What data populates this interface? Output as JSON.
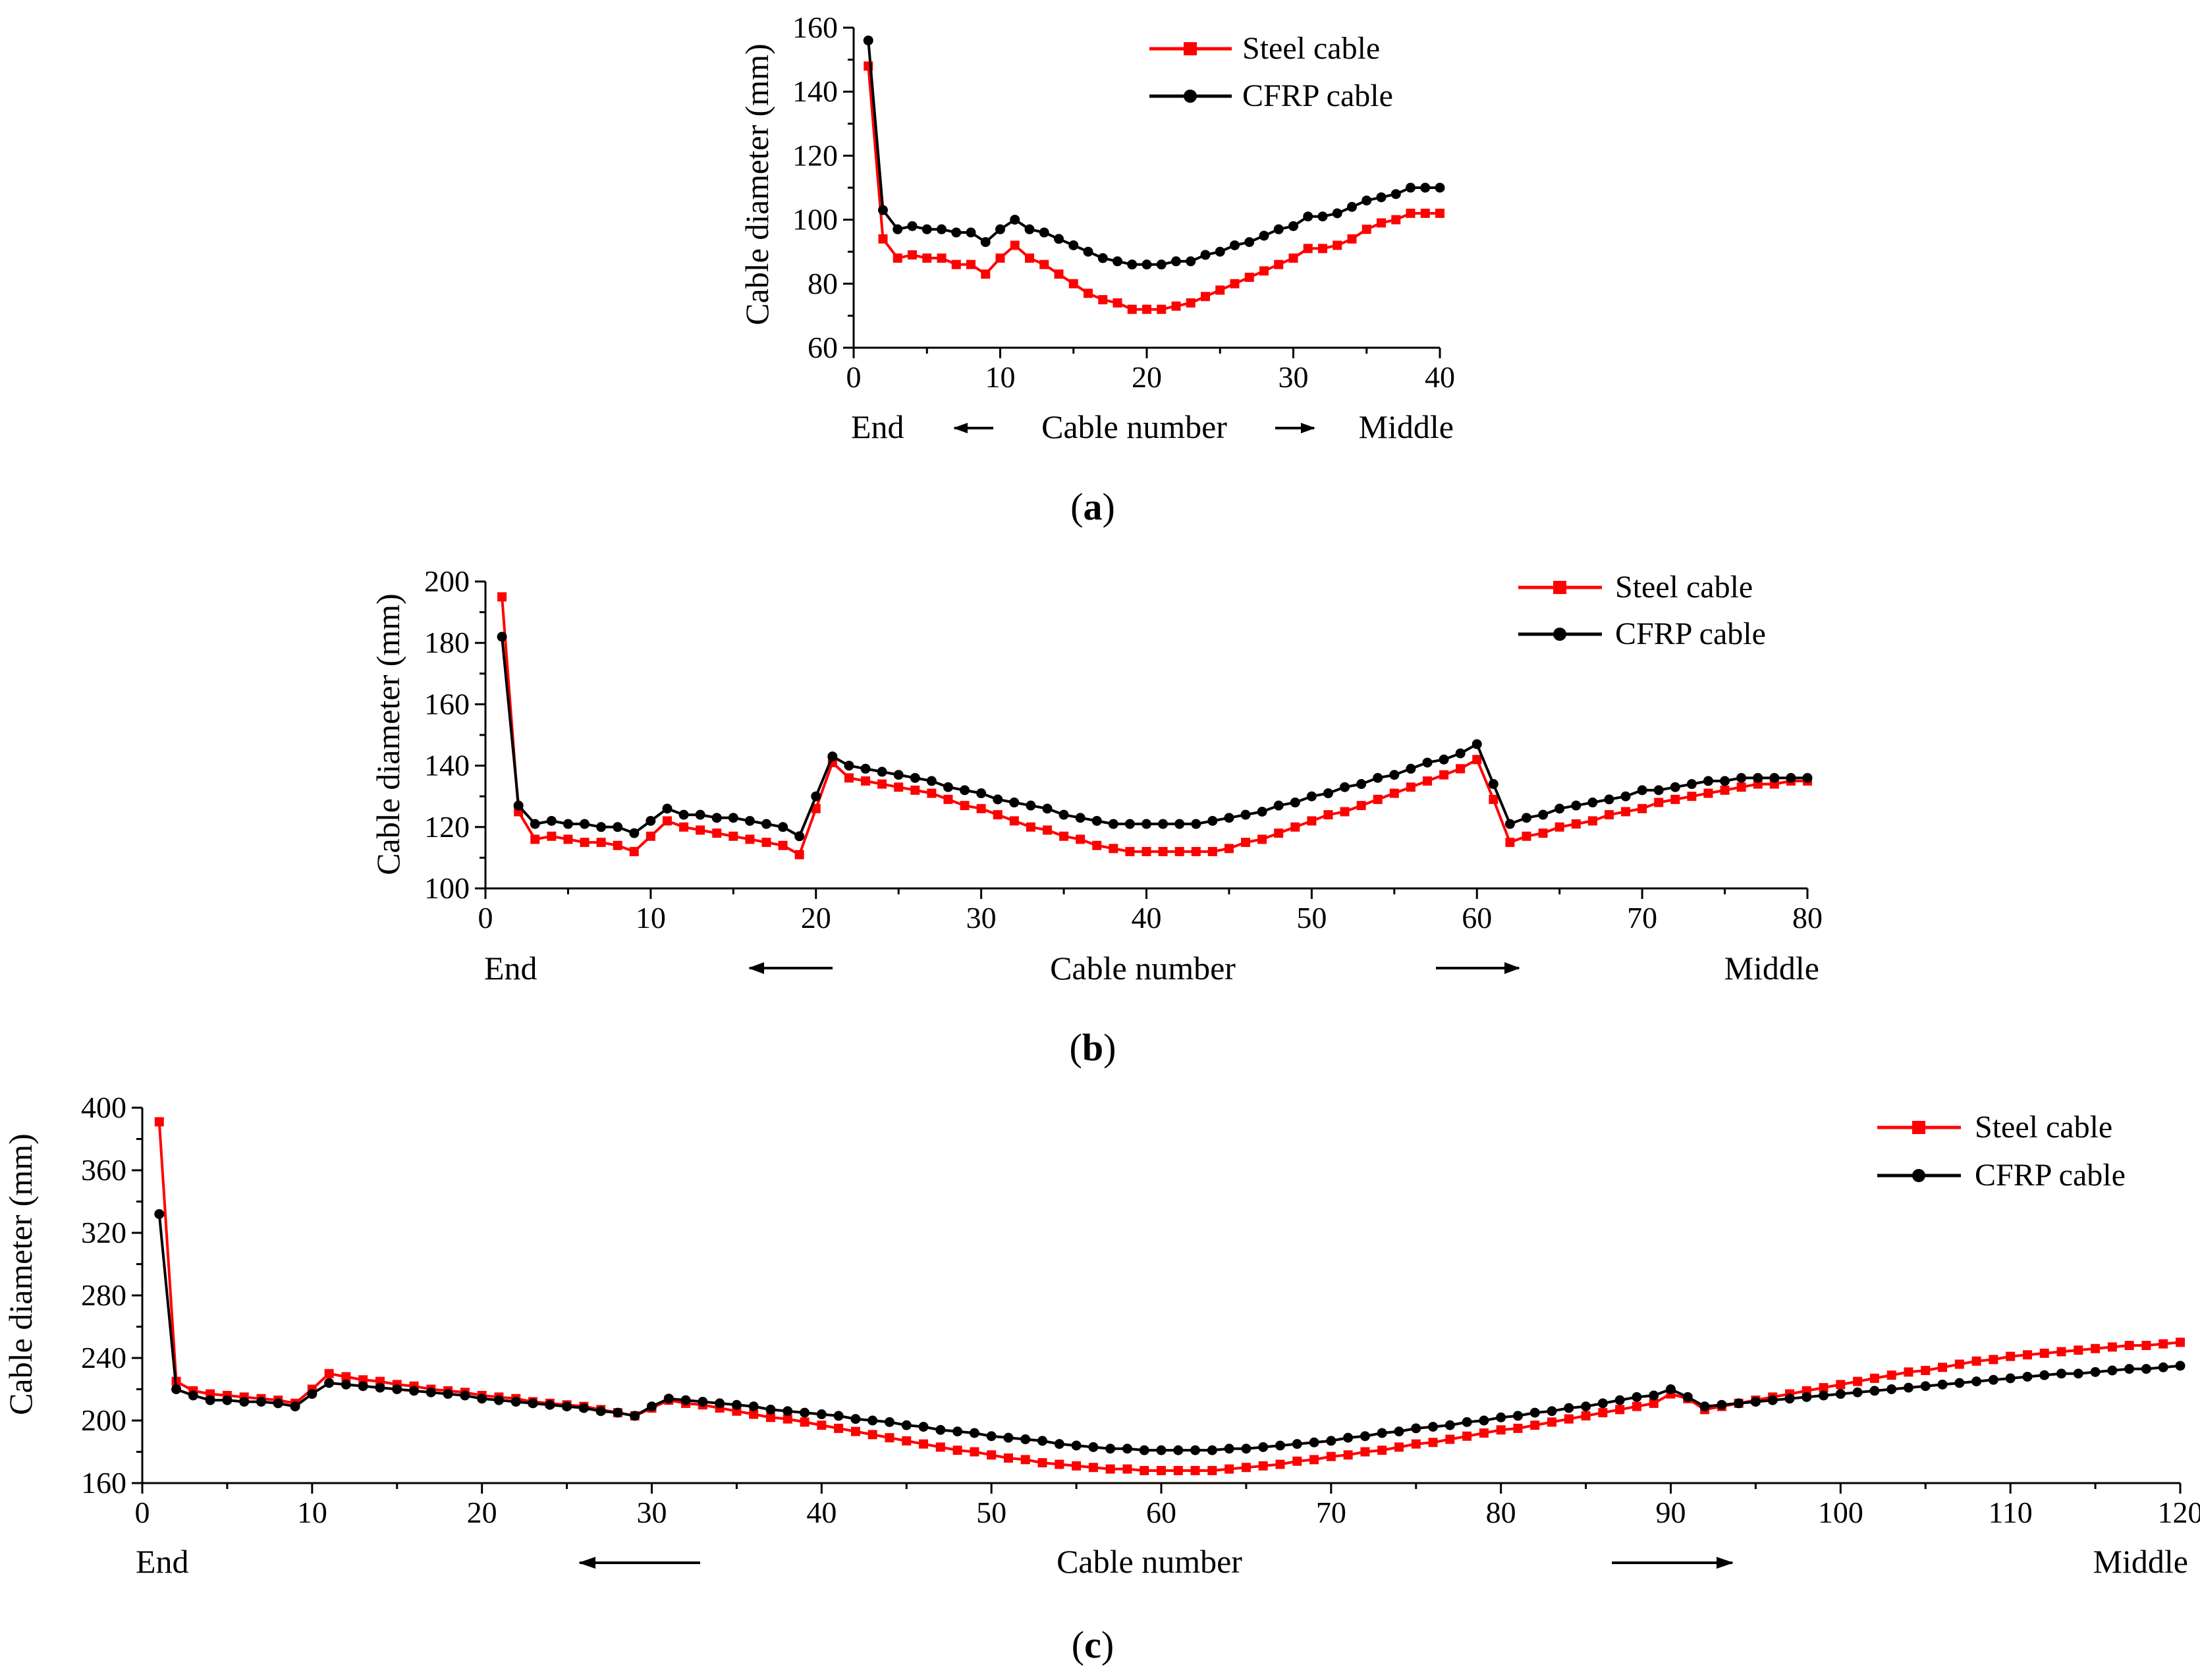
{
  "chart_data": [
    {
      "panel": "a",
      "type": "line",
      "caption": {
        "open": "(",
        "letter": "a",
        "close": ")"
      },
      "xlabel": "Cable number",
      "ylabel": "Cable diameter (mm)",
      "x_left_label": "End",
      "x_right_label": "Middle",
      "xlim": [
        0,
        40
      ],
      "ylim": [
        60,
        160
      ],
      "xticks": [
        0,
        10,
        20,
        30,
        40
      ],
      "yticks": [
        60,
        80,
        100,
        120,
        140,
        160
      ],
      "grid": false,
      "legend_position": "top-right",
      "x": [
        1,
        2,
        3,
        4,
        5,
        6,
        7,
        8,
        9,
        10,
        11,
        12,
        13,
        14,
        15,
        16,
        17,
        18,
        19,
        20,
        21,
        22,
        23,
        24,
        25,
        26,
        27,
        28,
        29,
        30,
        31,
        32,
        33,
        34,
        35,
        36,
        37,
        38,
        39,
        40
      ],
      "series": [
        {
          "name": "Steel cable",
          "color": "#ff0000",
          "marker": "square",
          "values": [
            148,
            94,
            88,
            89,
            88,
            88,
            86,
            86,
            83,
            88,
            92,
            88,
            86,
            83,
            80,
            77,
            75,
            74,
            72,
            72,
            72,
            73,
            74,
            76,
            78,
            80,
            82,
            84,
            86,
            88,
            91,
            91,
            92,
            94,
            97,
            99,
            100,
            102,
            102,
            102
          ]
        },
        {
          "name": "CFRP cable",
          "color": "#000000",
          "marker": "circle",
          "values": [
            156,
            103,
            97,
            98,
            97,
            97,
            96,
            96,
            93,
            97,
            100,
            97,
            96,
            94,
            92,
            90,
            88,
            87,
            86,
            86,
            86,
            87,
            87,
            89,
            90,
            92,
            93,
            95,
            97,
            98,
            101,
            101,
            102,
            104,
            106,
            107,
            108,
            110,
            110,
            110
          ]
        }
      ]
    },
    {
      "panel": "b",
      "type": "line",
      "caption": {
        "open": "(",
        "letter": "b",
        "close": ")"
      },
      "xlabel": "Cable number",
      "ylabel": "Cable diameter (mm)",
      "x_left_label": "End",
      "x_right_label": "Middle",
      "xlim": [
        0,
        80
      ],
      "ylim": [
        100,
        200
      ],
      "xticks": [
        0,
        10,
        20,
        30,
        40,
        50,
        60,
        70,
        80
      ],
      "yticks": [
        100,
        120,
        140,
        160,
        180,
        200
      ],
      "grid": false,
      "legend_position": "top-right",
      "x": [
        1,
        2,
        3,
        4,
        5,
        6,
        7,
        8,
        9,
        10,
        11,
        12,
        13,
        14,
        15,
        16,
        17,
        18,
        19,
        20,
        21,
        22,
        23,
        24,
        25,
        26,
        27,
        28,
        29,
        30,
        31,
        32,
        33,
        34,
        35,
        36,
        37,
        38,
        39,
        40,
        41,
        42,
        43,
        44,
        45,
        46,
        47,
        48,
        49,
        50,
        51,
        52,
        53,
        54,
        55,
        56,
        57,
        58,
        59,
        60,
        61,
        62,
        63,
        64,
        65,
        66,
        67,
        68,
        69,
        70,
        71,
        72,
        73,
        74,
        75,
        76,
        77,
        78,
        79,
        80
      ],
      "series": [
        {
          "name": "Steel cable",
          "color": "#ff0000",
          "marker": "square",
          "values": [
            195,
            125,
            116,
            117,
            116,
            115,
            115,
            114,
            112,
            117,
            122,
            120,
            119,
            118,
            117,
            116,
            115,
            114,
            111,
            126,
            141,
            136,
            135,
            134,
            133,
            132,
            131,
            129,
            127,
            126,
            124,
            122,
            120,
            119,
            117,
            116,
            114,
            113,
            112,
            112,
            112,
            112,
            112,
            112,
            113,
            115,
            116,
            118,
            120,
            122,
            124,
            125,
            127,
            129,
            131,
            133,
            135,
            137,
            139,
            142,
            129,
            115,
            117,
            118,
            120,
            121,
            122,
            124,
            125,
            126,
            128,
            129,
            130,
            131,
            132,
            133,
            134,
            134,
            135,
            135
          ]
        },
        {
          "name": "CFRP cable",
          "color": "#000000",
          "marker": "circle",
          "values": [
            182,
            127,
            121,
            122,
            121,
            121,
            120,
            120,
            118,
            122,
            126,
            124,
            124,
            123,
            123,
            122,
            121,
            120,
            117,
            130,
            143,
            140,
            139,
            138,
            137,
            136,
            135,
            133,
            132,
            131,
            129,
            128,
            127,
            126,
            124,
            123,
            122,
            121,
            121,
            121,
            121,
            121,
            121,
            122,
            123,
            124,
            125,
            127,
            128,
            130,
            131,
            133,
            134,
            136,
            137,
            139,
            141,
            142,
            144,
            147,
            134,
            121,
            123,
            124,
            126,
            127,
            128,
            129,
            130,
            132,
            132,
            133,
            134,
            135,
            135,
            136,
            136,
            136,
            136,
            136
          ]
        }
      ]
    },
    {
      "panel": "c",
      "type": "line",
      "caption": {
        "open": "(",
        "letter": "c",
        "close": ")"
      },
      "xlabel": "Cable number",
      "ylabel": "Cable diameter (mm)",
      "x_left_label": "End",
      "x_right_label": "Middle",
      "xlim": [
        0,
        120
      ],
      "ylim": [
        160,
        400
      ],
      "xticks": [
        0,
        10,
        20,
        30,
        40,
        50,
        60,
        70,
        80,
        90,
        100,
        110,
        120
      ],
      "yticks": [
        160,
        200,
        240,
        280,
        320,
        360,
        400
      ],
      "grid": false,
      "legend_position": "top-right",
      "x": [
        1,
        2,
        3,
        4,
        5,
        6,
        7,
        8,
        9,
        10,
        11,
        12,
        13,
        14,
        15,
        16,
        17,
        18,
        19,
        20,
        21,
        22,
        23,
        24,
        25,
        26,
        27,
        28,
        29,
        30,
        31,
        32,
        33,
        34,
        35,
        36,
        37,
        38,
        39,
        40,
        41,
        42,
        43,
        44,
        45,
        46,
        47,
        48,
        49,
        50,
        51,
        52,
        53,
        54,
        55,
        56,
        57,
        58,
        59,
        60,
        61,
        62,
        63,
        64,
        65,
        66,
        67,
        68,
        69,
        70,
        71,
        72,
        73,
        74,
        75,
        76,
        77,
        78,
        79,
        80,
        81,
        82,
        83,
        84,
        85,
        86,
        87,
        88,
        89,
        90,
        91,
        92,
        93,
        94,
        95,
        96,
        97,
        98,
        99,
        100,
        101,
        102,
        103,
        104,
        105,
        106,
        107,
        108,
        109,
        110,
        111,
        112,
        113,
        114,
        115,
        116,
        117,
        118,
        119,
        120
      ],
      "series": [
        {
          "name": "Steel cable",
          "color": "#ff0000",
          "marker": "square",
          "values": [
            391,
            225,
            219,
            217,
            216,
            215,
            214,
            213,
            211,
            220,
            230,
            228,
            226,
            225,
            223,
            222,
            220,
            219,
            218,
            216,
            215,
            214,
            212,
            211,
            210,
            209,
            207,
            205,
            203,
            208,
            213,
            211,
            210,
            208,
            206,
            204,
            202,
            201,
            199,
            197,
            195,
            193,
            191,
            189,
            187,
            185,
            183,
            181,
            180,
            178,
            176,
            175,
            173,
            172,
            171,
            170,
            169,
            169,
            168,
            168,
            168,
            168,
            168,
            169,
            170,
            171,
            172,
            174,
            175,
            177,
            178,
            180,
            181,
            183,
            185,
            186,
            188,
            190,
            192,
            194,
            195,
            197,
            199,
            201,
            203,
            205,
            207,
            209,
            211,
            217,
            214,
            207,
            209,
            211,
            213,
            215,
            217,
            219,
            221,
            223,
            225,
            227,
            229,
            231,
            232,
            234,
            236,
            238,
            239,
            241,
            242,
            243,
            244,
            245,
            246,
            247,
            248,
            248,
            249,
            250
          ]
        },
        {
          "name": "CFRP cable",
          "color": "#000000",
          "marker": "circle",
          "values": [
            332,
            220,
            216,
            213,
            213,
            212,
            212,
            211,
            209,
            217,
            224,
            223,
            222,
            221,
            220,
            219,
            218,
            217,
            216,
            214,
            213,
            212,
            211,
            210,
            209,
            208,
            206,
            205,
            203,
            209,
            214,
            213,
            212,
            211,
            210,
            209,
            207,
            206,
            205,
            204,
            203,
            201,
            200,
            199,
            197,
            196,
            194,
            193,
            192,
            190,
            189,
            188,
            187,
            185,
            184,
            183,
            182,
            182,
            181,
            181,
            181,
            181,
            181,
            182,
            182,
            183,
            184,
            185,
            186,
            187,
            189,
            190,
            192,
            193,
            195,
            196,
            197,
            199,
            200,
            202,
            203,
            205,
            206,
            208,
            209,
            211,
            213,
            215,
            216,
            220,
            215,
            209,
            210,
            211,
            212,
            213,
            214,
            215,
            216,
            217,
            218,
            219,
            220,
            221,
            222,
            223,
            224,
            225,
            226,
            227,
            228,
            229,
            230,
            230,
            231,
            232,
            233,
            233,
            234,
            235
          ]
        }
      ]
    }
  ]
}
